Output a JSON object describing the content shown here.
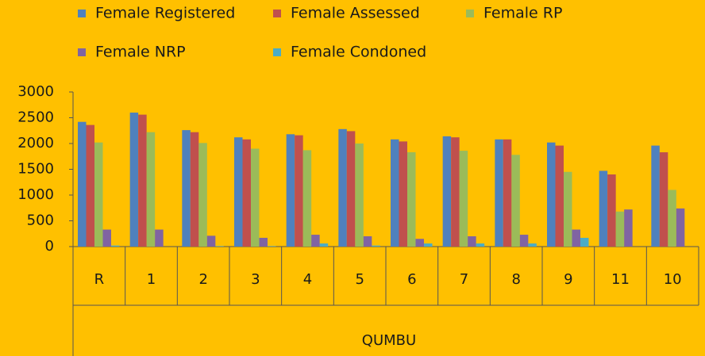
{
  "chart_data": {
    "type": "bar",
    "categories": [
      "R",
      "1",
      "2",
      "3",
      "4",
      "5",
      "6",
      "7",
      "8",
      "9",
      "11",
      "10"
    ],
    "group_label": "QUMBU",
    "series": [
      {
        "name": "Female Registered",
        "color": "#4f81bd",
        "values": [
          2420,
          2600,
          2260,
          2120,
          2180,
          2280,
          2080,
          2140,
          2080,
          2020,
          1470,
          1960
        ]
      },
      {
        "name": "Female Assessed",
        "color": "#c0504d",
        "values": [
          2360,
          2560,
          2220,
          2080,
          2160,
          2240,
          2040,
          2120,
          2080,
          1960,
          1400,
          1830
        ]
      },
      {
        "name": "Female RP",
        "color": "#9bbb59",
        "values": [
          2020,
          2220,
          2010,
          1900,
          1870,
          2000,
          1830,
          1860,
          1780,
          1450,
          680,
          1100
        ]
      },
      {
        "name": "Female NRP",
        "color": "#8064a2",
        "values": [
          330,
          330,
          210,
          170,
          230,
          200,
          150,
          200,
          230,
          330,
          720,
          740
        ]
      },
      {
        "name": "Female Condoned",
        "color": "#4bacc6",
        "values": [
          20,
          0,
          10,
          10,
          60,
          20,
          60,
          60,
          60,
          170,
          0,
          0
        ]
      }
    ],
    "ylim": [
      0,
      3000
    ],
    "yticks": [
      0,
      500,
      1000,
      1500,
      2000,
      2500,
      3000
    ],
    "grid": false
  }
}
